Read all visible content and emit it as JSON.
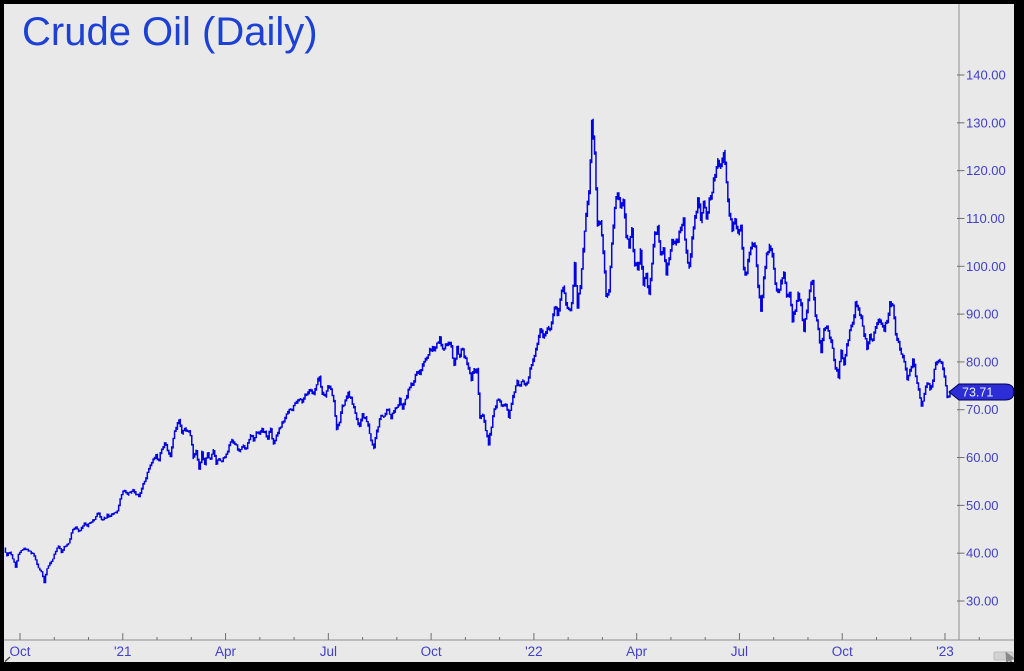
{
  "header": {
    "title": "Crude Oil (Daily)"
  },
  "price_tag": {
    "value": "73.71"
  },
  "colors": {
    "background": "#e9e9e9",
    "frame": "#000000",
    "title_text": "#1c41d4",
    "axis_line": "#8f8f8f",
    "tick_mark": "#707070",
    "axis_label_text": "#4140c9",
    "series_line": "#0404dd",
    "tag_fill": "#2d2dd8",
    "tag_border": "#00004d",
    "tag_text": "#eef0f2",
    "scroll_thumb": "#d2d2d2",
    "cursor_glyph": "#8a8a8a"
  },
  "y_axis": {
    "tick_labels": [
      "140.00",
      "130.00",
      "120.00",
      "110.00",
      "100.00",
      "90.00",
      "80.00",
      "70.00",
      "60.00",
      "50.00",
      "40.00",
      "30.00"
    ],
    "tick_values": [
      140,
      130,
      120,
      110,
      100,
      90,
      80,
      70,
      60,
      50,
      40,
      30
    ]
  },
  "x_axis": {
    "tick_labels": [
      "Oct",
      "'21",
      "Apr",
      "Jul",
      "Oct",
      "'22",
      "Apr",
      "Jul",
      "Oct",
      "'23"
    ],
    "minor_tick_months": 29,
    "label_every": 3
  },
  "chart_data": {
    "type": "line",
    "title": "Crude Oil (Daily)",
    "xlabel": "",
    "ylabel": "",
    "ylim": [
      30,
      140
    ],
    "y_ticks": [
      30,
      40,
      50,
      60,
      70,
      80,
      90,
      100,
      110,
      120,
      130,
      140
    ],
    "x_tick_labels": [
      "Oct",
      "'21",
      "Apr",
      "Jul",
      "Oct",
      "'22",
      "Apr",
      "Jul",
      "Oct",
      "'23"
    ],
    "grid": false,
    "legend": false,
    "last_price": 73.71,
    "series": [
      {
        "name": "Crude Oil",
        "color": "#0404dd",
        "values": [
          41.0,
          39.5,
          40.2,
          38.8,
          37.1,
          39.8,
          40.6,
          41.0,
          40.8,
          40.4,
          40.0,
          38.6,
          36.9,
          36.2,
          33.8,
          36.8,
          37.9,
          38.8,
          40.3,
          41.4,
          40.1,
          41.4,
          41.9,
          42.9,
          44.9,
          45.5,
          44.6,
          45.3,
          46.3,
          45.6,
          46.3,
          46.9,
          47.6,
          48.4,
          47.0,
          47.4,
          48.1,
          47.7,
          48.3,
          48.5,
          50.0,
          52.2,
          53.0,
          52.3,
          52.7,
          53.3,
          52.2,
          51.8,
          53.5,
          55.0,
          56.9,
          58.3,
          59.5,
          60.5,
          59.3,
          61.7,
          63.0,
          61.5,
          60.2,
          64.0,
          66.1,
          67.9,
          65.1,
          66.0,
          65.6,
          64.6,
          60.0,
          61.4,
          57.6,
          61.2,
          58.6,
          60.9,
          59.8,
          61.5,
          58.7,
          59.6,
          59.3,
          60.1,
          61.2,
          63.2,
          63.1,
          62.7,
          61.4,
          62.1,
          61.9,
          63.1,
          64.6,
          63.6,
          65.2,
          64.9,
          66.1,
          65.4,
          63.8,
          66.0,
          63.0,
          64.6,
          66.2,
          67.3,
          68.3,
          69.4,
          70.0,
          70.9,
          71.5,
          72.1,
          71.6,
          73.1,
          73.6,
          74.1,
          73.3,
          75.2,
          76.9,
          73.4,
          72.9,
          74.9,
          74.2,
          71.9,
          66.0,
          67.4,
          71.0,
          71.8,
          73.6,
          72.5,
          70.6,
          68.2,
          66.5,
          69.1,
          68.4,
          66.8,
          63.7,
          62.0,
          65.6,
          68.0,
          68.7,
          69.0,
          69.9,
          68.3,
          69.7,
          70.5,
          72.3,
          70.3,
          72.2,
          74.3,
          75.4,
          75.9,
          77.8,
          77.4,
          79.4,
          80.6,
          81.4,
          82.4,
          82.6,
          83.9,
          85.0,
          82.7,
          83.6,
          84.1,
          83.2,
          79.5,
          83.0,
          81.2,
          82.6,
          80.8,
          78.6,
          76.1,
          78.4,
          78.5,
          68.2,
          68.9,
          65.6,
          62.6,
          66.3,
          70.0,
          72.0,
          71.7,
          71.0,
          70.9,
          68.4,
          71.2,
          73.8,
          75.9,
          75.2,
          76.0,
          75.2,
          76.6,
          79.2,
          81.3,
          83.8,
          86.9,
          85.1,
          86.3,
          86.8,
          88.3,
          91.5,
          89.9,
          93.2,
          95.5,
          92.1,
          91.1,
          92.4,
          100.5,
          91.6,
          95.7,
          103.4,
          110.6,
          115.7,
          130.5,
          123.7,
          108.7,
          109.3,
          103.0,
          93.8,
          95.0,
          104.7,
          112.1,
          114.9,
          112.3,
          113.9,
          106.0,
          104.2,
          107.8,
          100.3,
          99.3,
          103.3,
          96.2,
          98.3,
          94.3,
          100.6,
          107.0,
          108.2,
          102.6,
          103.8,
          98.5,
          101.7,
          105.4,
          104.7,
          105.2,
          107.8,
          109.8,
          103.1,
          100.0,
          106.1,
          110.5,
          114.2,
          109.6,
          113.2,
          110.3,
          114.1,
          115.5,
          118.9,
          122.1,
          120.9,
          123.7,
          117.5,
          110.7,
          107.6,
          109.6,
          107.0,
          108.4,
          99.5,
          98.5,
          102.7,
          104.8,
          104.1,
          95.8,
          90.6,
          97.6,
          102.6,
          104.2,
          102.3,
          96.4,
          94.7,
          96.7,
          98.6,
          93.9,
          94.4,
          88.5,
          90.8,
          94.3,
          92.1,
          86.5,
          90.5,
          94.9,
          97.0,
          89.6,
          86.9,
          81.9,
          86.8,
          87.3,
          85.1,
          82.8,
          78.7,
          76.7,
          82.2,
          79.5,
          83.6,
          86.5,
          88.0,
          92.6,
          91.1,
          89.3,
          85.6,
          82.8,
          85.6,
          84.8,
          87.3,
          88.9,
          87.9,
          86.5,
          88.4,
          92.6,
          91.8,
          85.8,
          84.1,
          81.6,
          80.0,
          76.3,
          78.2,
          80.6,
          76.9,
          74.3,
          71.0,
          73.2,
          75.4,
          74.3,
          76.1,
          79.6,
          80.3,
          79.9,
          76.9,
          72.8,
          73.71
        ]
      }
    ]
  }
}
